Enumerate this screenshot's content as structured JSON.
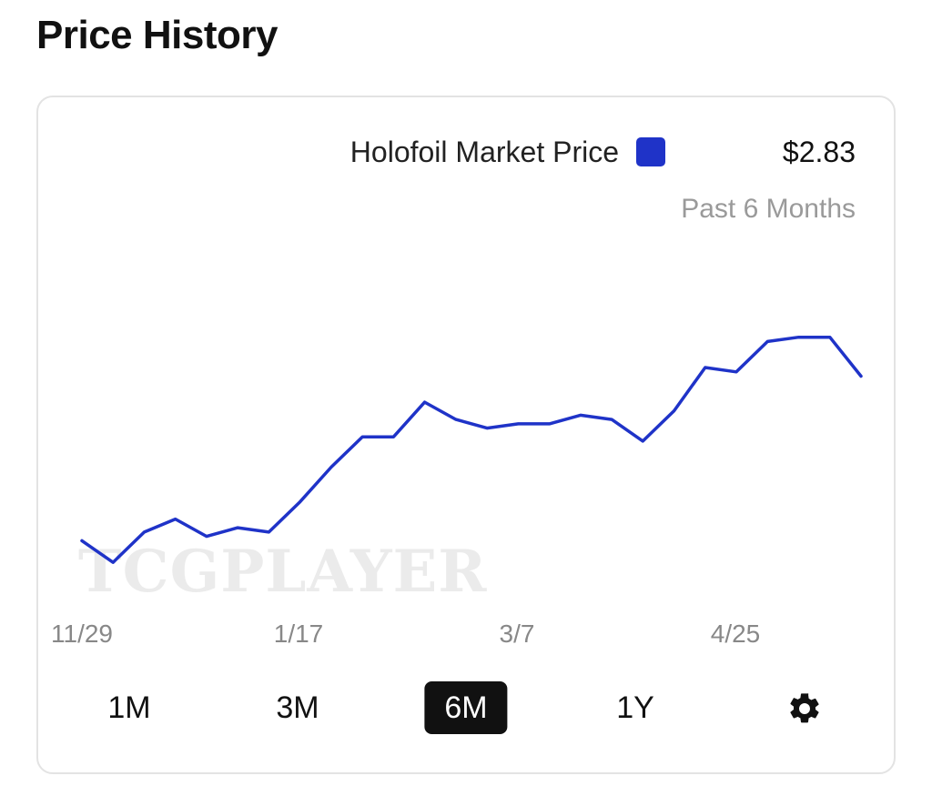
{
  "header": {
    "title": "Price History"
  },
  "legend": {
    "label": "Holofoil Market Price",
    "price": "$2.83",
    "subtitle": "Past 6 Months"
  },
  "watermark": "TCGPLAYER",
  "range_buttons": [
    {
      "label": "1M",
      "active": false
    },
    {
      "label": "3M",
      "active": false
    },
    {
      "label": "6M",
      "active": true
    },
    {
      "label": "1Y",
      "active": false
    }
  ],
  "settings_icon": "gear-icon",
  "colors": {
    "series": "#1f33c8",
    "active_button_bg": "#111111"
  },
  "chart_data": {
    "type": "line",
    "title": "",
    "xlabel": "",
    "ylabel": "",
    "x_tick_labels": [
      "11/29",
      "1/17",
      "3/7",
      "4/25"
    ],
    "grid": false,
    "legend_position": "top-right",
    "series": [
      {
        "name": "Holofoil Market Price",
        "values": [
          2.35,
          2.3,
          2.37,
          2.4,
          2.36,
          2.38,
          2.37,
          2.44,
          2.52,
          2.59,
          2.59,
          2.67,
          2.63,
          2.61,
          2.62,
          2.62,
          2.64,
          2.63,
          2.58,
          2.65,
          2.75,
          2.74,
          2.81,
          2.82,
          2.82,
          2.73
        ]
      }
    ]
  }
}
